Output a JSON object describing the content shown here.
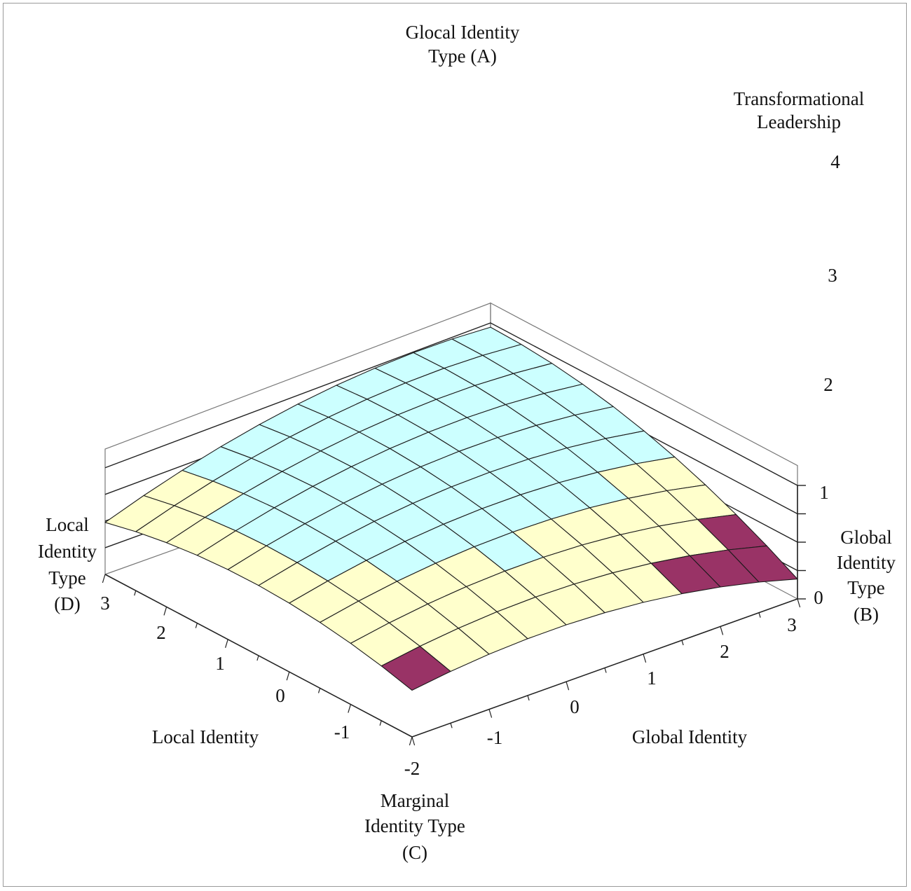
{
  "chart_data": {
    "type": "surface3d",
    "title": "",
    "xlabel": "Local Identity",
    "ylabel": "Global Identity",
    "zlabel_lines": [
      "Transformational",
      "Leadership"
    ],
    "x_range": [
      -2,
      3
    ],
    "y_range": [
      -2,
      3
    ],
    "z_range": [
      0,
      4
    ],
    "x_ticks": [
      "3",
      "2",
      "1",
      "0",
      "-1"
    ],
    "y_ticks": [
      "-1",
      "0",
      "1",
      "2",
      "3"
    ],
    "origin_tick": "-2",
    "z_ticks": [
      "0",
      "1",
      "2",
      "3",
      "4"
    ],
    "z_bands": [
      {
        "range": [
          0,
          1
        ],
        "color": "#9999ff"
      },
      {
        "range": [
          1,
          2
        ],
        "color": "#993366"
      },
      {
        "range": [
          2,
          3
        ],
        "color": "#ffffcc"
      },
      {
        "range": [
          3,
          4
        ],
        "color": "#ccffff"
      }
    ],
    "annotations": {
      "glocal": [
        "Glocal Identity",
        "Type (A)"
      ],
      "global_type": [
        "Global",
        "Identity",
        "Type",
        "(B)"
      ],
      "marginal": [
        "Marginal",
        "Identity Type",
        "(C)"
      ],
      "local_type": [
        "Local",
        "Identity",
        "Type",
        "(D)"
      ]
    },
    "surface_peaks": {
      "glocal_corner_x3_y3": 3.85,
      "ridge_max": 3.1,
      "local_corner_x3_yneg2": 1.95,
      "global_corner_xneg2_y3": 0.7,
      "marginal_corner_xneg2_yneg2": 1.75
    }
  }
}
